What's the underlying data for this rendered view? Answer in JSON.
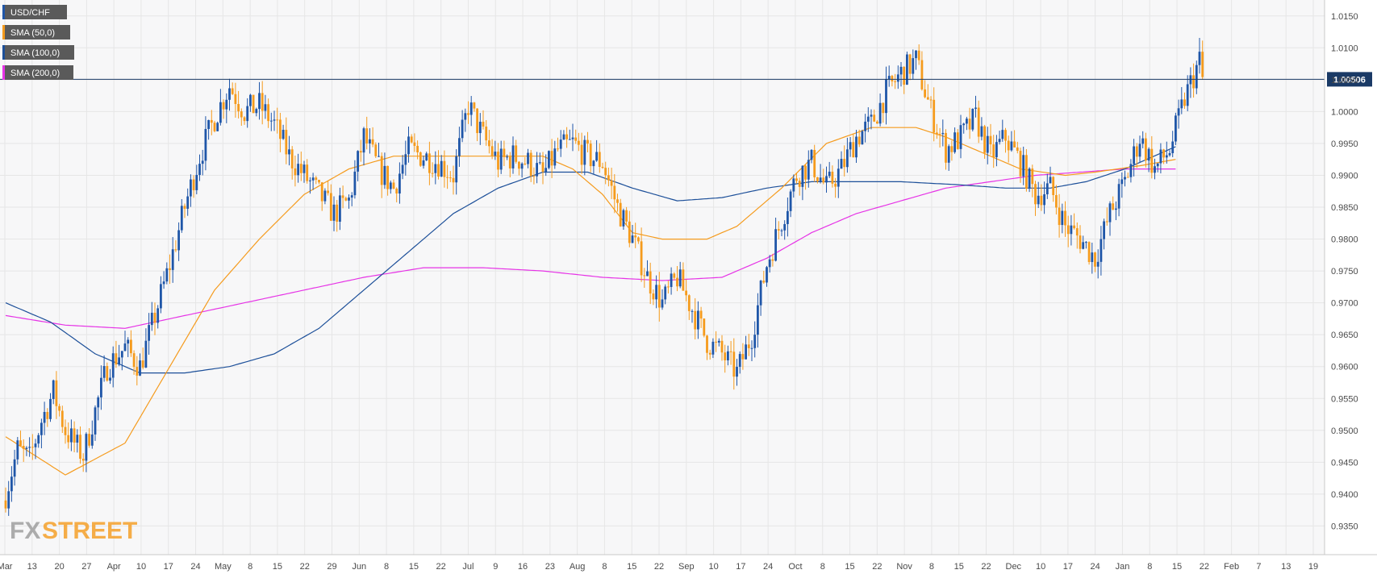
{
  "chart_data": {
    "type": "candlestick",
    "symbol": "USD/CHF",
    "colors": {
      "up": "#1f56a8",
      "down": "#f59b1d",
      "sma50": "#f59b1d",
      "sma100": "#1c4f99",
      "sma200": "#e633e6",
      "price_line": "#1a3a66",
      "grid": "#e6e6e6",
      "axis_text": "#4a4a4a",
      "legend_bg": "#5a5a5a"
    },
    "ylim": [
      0.9305,
      1.0175
    ],
    "y_ticks": [
      "1.0150",
      "1.0100",
      "1.0050",
      "1.0000",
      "0.9950",
      "0.9900",
      "0.9850",
      "0.9800",
      "0.9750",
      "0.9700",
      "0.9650",
      "0.9600",
      "0.9550",
      "0.9500",
      "0.9450",
      "0.9400",
      "0.9350"
    ],
    "x_ticks": [
      "Mar",
      "13",
      "20",
      "27",
      "Apr",
      "10",
      "17",
      "24",
      "May",
      "8",
      "15",
      "22",
      "29",
      "Jun",
      "8",
      "15",
      "22",
      "Jul",
      "9",
      "16",
      "23",
      "Aug",
      "8",
      "15",
      "22",
      "Sep",
      "10",
      "17",
      "24",
      "Oct",
      "8",
      "15",
      "22",
      "Nov",
      "8",
      "15",
      "22",
      "Dec",
      "10",
      "17",
      "24",
      "Jan",
      "8",
      "15",
      "22",
      "Feb",
      "7",
      "13",
      "19"
    ],
    "last_price": "1.00506",
    "last_price_value": 1.00506,
    "legend": [
      {
        "label": "USD/CHF",
        "color": "#1f56a8"
      },
      {
        "label": "SMA (50,0)",
        "color": "#f59b1d"
      },
      {
        "label": "SMA (100,0)",
        "color": "#1c4f99"
      },
      {
        "label": "SMA (200,0)",
        "color": "#e633e6"
      }
    ],
    "close_path": [
      [
        0,
        0.94
      ],
      [
        4,
        0.947
      ],
      [
        8,
        0.9455
      ],
      [
        12,
        0.9515
      ],
      [
        16,
        0.956
      ],
      [
        20,
        0.95
      ],
      [
        26,
        0.946
      ],
      [
        30,
        0.953
      ],
      [
        34,
        0.96
      ],
      [
        40,
        0.963
      ],
      [
        45,
        0.96
      ],
      [
        50,
        0.968
      ],
      [
        55,
        0.976
      ],
      [
        60,
        0.985
      ],
      [
        65,
        0.993
      ],
      [
        70,
        0.999
      ],
      [
        75,
        1.004
      ],
      [
        80,
        1.0
      ],
      [
        85,
        1.001
      ],
      [
        90,
        0.998
      ],
      [
        95,
        0.993
      ],
      [
        100,
        0.99
      ],
      [
        105,
        0.987
      ],
      [
        110,
        0.984
      ],
      [
        115,
        0.986
      ],
      [
        120,
        0.996
      ],
      [
        125,
        0.991
      ],
      [
        130,
        0.988
      ],
      [
        135,
        0.994
      ],
      [
        140,
        0.993
      ],
      [
        145,
        0.992
      ],
      [
        150,
        0.99
      ],
      [
        155,
        1.001
      ],
      [
        160,
        0.996
      ],
      [
        165,
        0.992
      ],
      [
        170,
        0.993
      ],
      [
        175,
        0.992
      ],
      [
        180,
        0.99
      ],
      [
        185,
        0.994
      ],
      [
        190,
        0.995
      ],
      [
        195,
        0.993
      ],
      [
        200,
        0.992
      ],
      [
        205,
        0.985
      ],
      [
        210,
        0.98
      ],
      [
        215,
        0.974
      ],
      [
        220,
        0.97
      ],
      [
        225,
        0.974
      ],
      [
        230,
        0.969
      ],
      [
        235,
        0.964
      ],
      [
        240,
        0.962
      ],
      [
        245,
        0.959
      ],
      [
        250,
        0.965
      ],
      [
        255,
        0.976
      ],
      [
        260,
        0.983
      ],
      [
        265,
        0.99
      ],
      [
        270,
        0.992
      ],
      [
        275,
        0.988
      ],
      [
        280,
        0.991
      ],
      [
        285,
        0.996
      ],
      [
        290,
        0.998
      ],
      [
        295,
        1.003
      ],
      [
        300,
        1.006
      ],
      [
        305,
        1.008
      ],
      [
        310,
        1.0
      ],
      [
        315,
        0.994
      ],
      [
        320,
        0.996
      ],
      [
        325,
        0.999
      ],
      [
        330,
        0.993
      ],
      [
        335,
        0.996
      ],
      [
        340,
        0.992
      ],
      [
        345,
        0.987
      ],
      [
        350,
        0.988
      ],
      [
        355,
        0.982
      ],
      [
        360,
        0.98
      ],
      [
        365,
        0.977
      ],
      [
        370,
        0.984
      ],
      [
        375,
        0.989
      ],
      [
        380,
        0.996
      ],
      [
        385,
        0.991
      ],
      [
        390,
        0.994
      ],
      [
        395,
        1.002
      ],
      [
        400,
        1.008
      ],
      [
        401,
        1.005
      ]
    ],
    "sma50": [
      [
        0,
        0.949
      ],
      [
        20,
        0.943
      ],
      [
        40,
        0.948
      ],
      [
        55,
        0.96
      ],
      [
        70,
        0.972
      ],
      [
        85,
        0.98
      ],
      [
        100,
        0.987
      ],
      [
        115,
        0.991
      ],
      [
        130,
        0.993
      ],
      [
        150,
        0.993
      ],
      [
        165,
        0.993
      ],
      [
        180,
        0.993
      ],
      [
        190,
        0.991
      ],
      [
        200,
        0.987
      ],
      [
        210,
        0.981
      ],
      [
        220,
        0.98
      ],
      [
        235,
        0.98
      ],
      [
        245,
        0.982
      ],
      [
        260,
        0.988
      ],
      [
        275,
        0.995
      ],
      [
        290,
        0.9975
      ],
      [
        305,
        0.9975
      ],
      [
        315,
        0.996
      ],
      [
        325,
        0.994
      ],
      [
        340,
        0.991
      ],
      [
        355,
        0.99
      ],
      [
        365,
        0.9905
      ],
      [
        380,
        0.9915
      ],
      [
        392,
        0.9925
      ]
    ],
    "sma100": [
      [
        0,
        0.97
      ],
      [
        15,
        0.967
      ],
      [
        30,
        0.962
      ],
      [
        45,
        0.959
      ],
      [
        60,
        0.959
      ],
      [
        75,
        0.96
      ],
      [
        90,
        0.962
      ],
      [
        105,
        0.966
      ],
      [
        120,
        0.972
      ],
      [
        135,
        0.978
      ],
      [
        150,
        0.984
      ],
      [
        165,
        0.988
      ],
      [
        180,
        0.9905
      ],
      [
        195,
        0.9905
      ],
      [
        210,
        0.988
      ],
      [
        225,
        0.986
      ],
      [
        240,
        0.9865
      ],
      [
        255,
        0.988
      ],
      [
        270,
        0.989
      ],
      [
        285,
        0.989
      ],
      [
        300,
        0.989
      ],
      [
        320,
        0.9885
      ],
      [
        335,
        0.988
      ],
      [
        350,
        0.988
      ],
      [
        362,
        0.989
      ],
      [
        375,
        0.991
      ],
      [
        392,
        0.9945
      ]
    ],
    "sma200": [
      [
        0,
        0.968
      ],
      [
        20,
        0.9665
      ],
      [
        40,
        0.966
      ],
      [
        60,
        0.968
      ],
      [
        80,
        0.97
      ],
      [
        100,
        0.972
      ],
      [
        120,
        0.974
      ],
      [
        140,
        0.9755
      ],
      [
        160,
        0.9755
      ],
      [
        180,
        0.975
      ],
      [
        200,
        0.974
      ],
      [
        220,
        0.9735
      ],
      [
        240,
        0.974
      ],
      [
        255,
        0.977
      ],
      [
        270,
        0.981
      ],
      [
        285,
        0.984
      ],
      [
        300,
        0.986
      ],
      [
        315,
        0.988
      ],
      [
        330,
        0.989
      ],
      [
        345,
        0.99
      ],
      [
        360,
        0.9905
      ],
      [
        375,
        0.991
      ],
      [
        392,
        0.991
      ]
    ]
  },
  "branding": {
    "logo_text_fx": "FX",
    "logo_text_street": "STREET"
  }
}
